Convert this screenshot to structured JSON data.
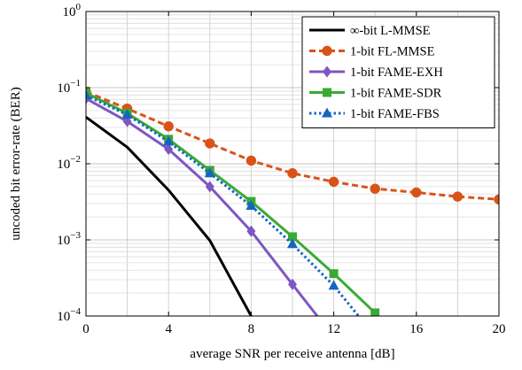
{
  "chart_data": {
    "type": "line",
    "xlabel": "average SNR per receive antenna [dB]",
    "ylabel": "uncoded bit error-rate (BER)",
    "xlim": [
      0,
      20
    ],
    "ylim": [
      0.0001,
      1
    ],
    "yscale": "log",
    "grid": true,
    "legend_position": "top-right",
    "x_ticks": [
      0,
      4,
      8,
      12,
      16,
      20
    ],
    "x_tick_labels": [
      "0",
      "4",
      "8",
      "12",
      "16",
      "20"
    ],
    "y_ticks": [
      {
        "value": 1,
        "base": "10",
        "exp": "0"
      },
      {
        "value": 0.1,
        "base": "10",
        "exp": "−1"
      },
      {
        "value": 0.01,
        "base": "10",
        "exp": "−2"
      },
      {
        "value": 0.001,
        "base": "10",
        "exp": "−3"
      },
      {
        "value": 0.0001,
        "base": "10",
        "exp": "−4"
      }
    ],
    "series": [
      {
        "name": "∞-bit L-MMSE",
        "color": "#000000",
        "dash": "solid",
        "marker": "none",
        "x": [
          0,
          2,
          4,
          6,
          8
        ],
        "y": [
          0.041,
          0.0165,
          0.0045,
          0.00098,
          0.0001
        ]
      },
      {
        "name": "1-bit FL-MMSE",
        "color": "#d95319",
        "dash": "dashed",
        "marker": "circle",
        "x": [
          0,
          2,
          4,
          6,
          8,
          10,
          12,
          14,
          16,
          18,
          20
        ],
        "y": [
          0.088,
          0.053,
          0.031,
          0.0185,
          0.011,
          0.0075,
          0.0058,
          0.0047,
          0.0042,
          0.0037,
          0.0034
        ]
      },
      {
        "name": "1-bit FAME-EXH",
        "color": "#7e57c2",
        "dash": "solid",
        "marker": "diamond",
        "x": [
          0,
          2,
          4,
          6,
          8,
          10,
          11.2
        ],
        "y": [
          0.072,
          0.036,
          0.0155,
          0.005,
          0.0013,
          0.00026,
          0.0001
        ]
      },
      {
        "name": "1-bit FAME-SDR",
        "color": "#3aaa35",
        "dash": "solid",
        "marker": "square",
        "x": [
          0,
          2,
          4,
          6,
          8,
          10,
          12,
          14
        ],
        "y": [
          0.085,
          0.046,
          0.021,
          0.0082,
          0.0032,
          0.0011,
          0.00036,
          0.00011
        ]
      },
      {
        "name": "1-bit FAME-FBS",
        "color": "#1565c0",
        "dash": "dotted",
        "marker": "triangle",
        "x": [
          0,
          2,
          4,
          6,
          8,
          10,
          12,
          13.2
        ],
        "y": [
          0.079,
          0.044,
          0.0195,
          0.0075,
          0.0028,
          0.00088,
          0.00025,
          0.0001
        ]
      }
    ]
  }
}
